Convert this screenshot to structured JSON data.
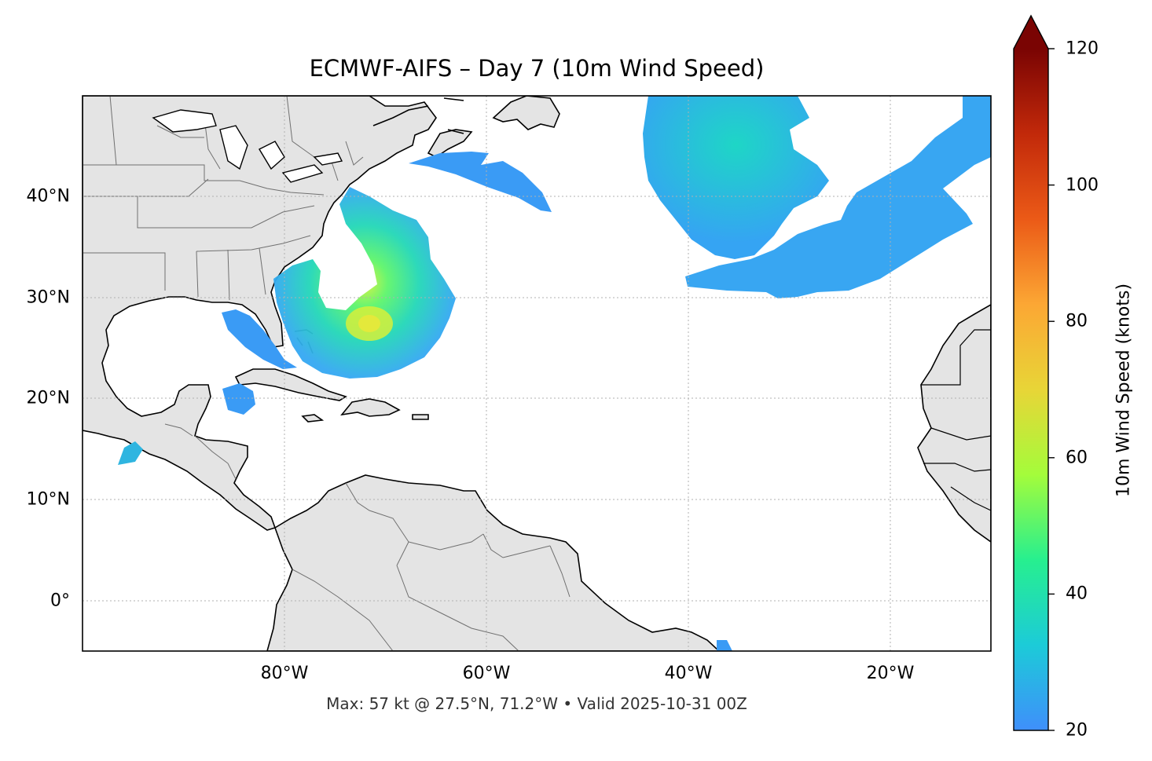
{
  "title": "ECMWF-AIFS – Day 7 (10m Wind Speed)",
  "footer": "Max: 57 kt @ 27.5°N, 71.2°W • Valid 2025-10-31 00Z",
  "map": {
    "extent_lon": [
      -100,
      -10
    ],
    "extent_lat": [
      -5,
      50
    ],
    "land_color": "#e4e4e4",
    "ocean_color": "#ffffff",
    "gridline_style": "dotted gray",
    "lat_ticks": [
      {
        "value": 40,
        "label": "40°N"
      },
      {
        "value": 30,
        "label": "30°N"
      },
      {
        "value": 20,
        "label": "20°N"
      },
      {
        "value": 10,
        "label": "10°N"
      },
      {
        "value": 0,
        "label": "0°"
      }
    ],
    "lon_ticks": [
      {
        "value": -80,
        "label": "80°W"
      },
      {
        "value": -60,
        "label": "60°W"
      },
      {
        "value": -40,
        "label": "40°W"
      },
      {
        "value": -20,
        "label": "20°W"
      }
    ],
    "max_point": {
      "lat": 27.5,
      "lon": -71.2,
      "speed_kt": 57
    }
  },
  "colorbar": {
    "label": "10m Wind Speed (knots)",
    "min": 20,
    "max": 120,
    "extend": "max",
    "ticks": [
      {
        "value": 20,
        "label": "20"
      },
      {
        "value": 40,
        "label": "40"
      },
      {
        "value": 60,
        "label": "60"
      },
      {
        "value": 80,
        "label": "80"
      },
      {
        "value": 100,
        "label": "100"
      },
      {
        "value": 120,
        "label": "120"
      }
    ],
    "colors": [
      "#3f8ffb",
      "#1ccbd8",
      "#27ef8f",
      "#a4fc3b",
      "#e8d537",
      "#fca734",
      "#eb5a17",
      "#c2290a",
      "#7a0403"
    ]
  }
}
